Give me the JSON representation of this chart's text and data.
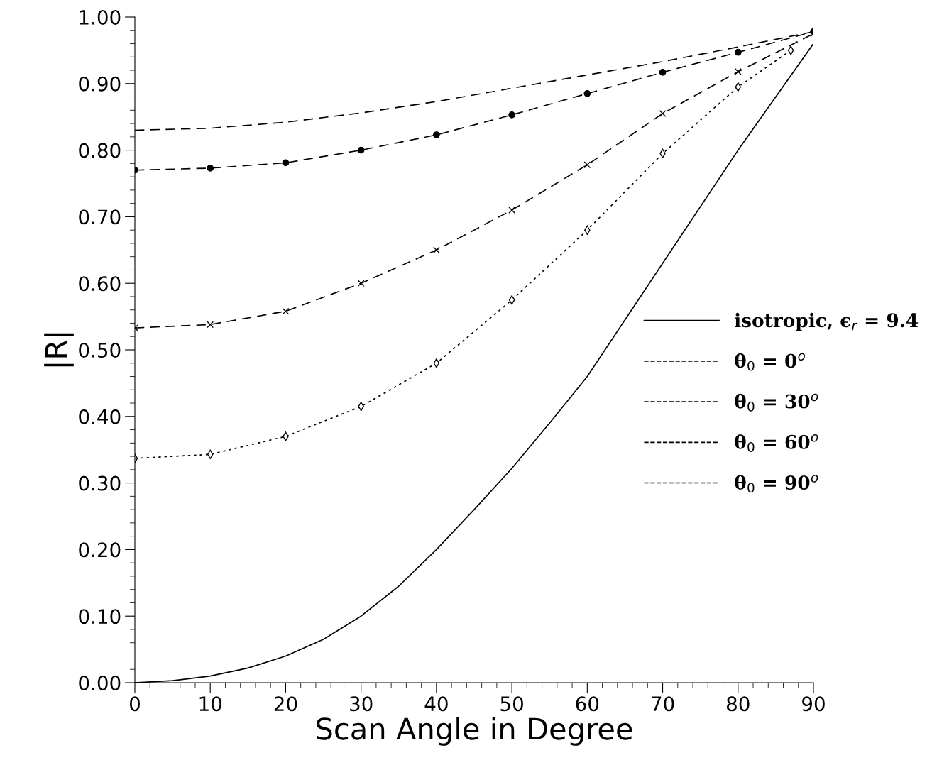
{
  "chart_data": {
    "type": "line",
    "xlabel": "Scan Angle in Degree",
    "ylabel": "|R|",
    "xlim": [
      0,
      90
    ],
    "xticks": [
      0,
      10,
      20,
      30,
      40,
      50,
      60,
      70,
      80,
      90
    ],
    "ylim": [
      0,
      1
    ],
    "yticks": [
      {
        "value": 0,
        "label": "0.00"
      },
      {
        "value": 0.1,
        "label": "0.10"
      },
      {
        "value": 0.2,
        "label": "0.20"
      },
      {
        "value": 0.3,
        "label": "0.30"
      },
      {
        "value": 0.4,
        "label": "0.40"
      },
      {
        "value": 0.5,
        "label": "0.50"
      },
      {
        "value": 0.6,
        "label": "0.60"
      },
      {
        "value": 0.7,
        "label": "0.70"
      },
      {
        "value": 0.8,
        "label": "0.80"
      },
      {
        "value": 0.9,
        "label": "0.90"
      },
      {
        "value": 1,
        "label": "1.00"
      }
    ],
    "grid": false,
    "legend": "right",
    "series": [
      {
        "name": "isotropic, ϵ$_{r}$ = 9.4",
        "color": "#000000",
        "line_style": "solid",
        "marker": "none",
        "x": [
          0,
          5,
          10,
          15,
          20,
          25,
          30,
          35,
          40,
          45,
          50,
          55,
          60,
          65,
          70,
          75,
          80,
          85,
          90
        ],
        "values": [
          0,
          0.003,
          0.01,
          0.022,
          0.04,
          0.065,
          0.1,
          0.145,
          0.2,
          0.26,
          0.322,
          0.39,
          0.46,
          0.545,
          0.63,
          0.715,
          0.8,
          0.88,
          0.96
        ]
      },
      {
        "name": "θ$_{0}$ = 0$^{o}$",
        "color": "#000000",
        "line_style": "dashed",
        "marker": "none",
        "x": [
          0,
          10,
          20,
          30,
          40,
          50,
          60,
          70,
          80,
          90
        ],
        "values": [
          0.83,
          0.833,
          0.842,
          0.856,
          0.873,
          0.893,
          0.913,
          0.933,
          0.955,
          0.978
        ]
      },
      {
        "name": "θ$_{0}$ = 30$^{o}$",
        "color": "#000000",
        "line_style": "dashed",
        "marker": "circle",
        "x": [
          0,
          10,
          20,
          30,
          40,
          50,
          60,
          70,
          80,
          90
        ],
        "values": [
          0.77,
          0.773,
          0.781,
          0.8,
          0.823,
          0.853,
          0.885,
          0.917,
          0.947,
          0.978
        ]
      },
      {
        "name": "θ$_{0}$ = 60$^{o}$",
        "color": "#000000",
        "line_style": "dashed",
        "marker": "cross",
        "x": [
          0,
          10,
          20,
          30,
          40,
          50,
          60,
          70,
          80,
          90
        ],
        "values": [
          0.533,
          0.538,
          0.558,
          0.6,
          0.65,
          0.71,
          0.778,
          0.855,
          0.918,
          0.975
        ]
      },
      {
        "name": "θ$_{0}$ = 90$^{o}$",
        "color": "#000000",
        "line_style": "dotted",
        "marker": "diamond",
        "x": [
          0,
          10,
          20,
          30,
          40,
          50,
          60,
          70,
          80,
          87
        ],
        "values": [
          0.337,
          0.343,
          0.37,
          0.415,
          0.48,
          0.575,
          0.68,
          0.795,
          0.895,
          0.95
        ]
      }
    ]
  }
}
